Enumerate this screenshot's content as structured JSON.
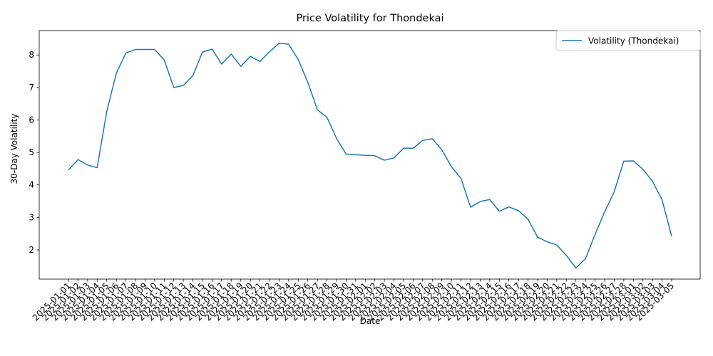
{
  "chart_data": {
    "type": "line",
    "title": "Price Volatility for Thondekai",
    "xlabel": "Date",
    "ylabel": "30-Day Volatility",
    "ylim": [
      1.1,
      8.75
    ],
    "yticks": [
      2,
      3,
      4,
      5,
      6,
      7,
      8
    ],
    "grid": false,
    "legend_position": "top-right",
    "colors": {
      "series": "#1f77b4"
    },
    "x": [
      "2025-01-01",
      "2025-01-02",
      "2025-01-03",
      "2025-01-04",
      "2025-01-05",
      "2025-01-06",
      "2025-01-07",
      "2025-01-08",
      "2025-01-09",
      "2025-01-10",
      "2025-01-11",
      "2025-01-12",
      "2025-01-13",
      "2025-01-14",
      "2025-01-15",
      "2025-01-16",
      "2025-01-17",
      "2025-01-18",
      "2025-01-19",
      "2025-01-20",
      "2025-01-21",
      "2025-01-22",
      "2025-01-23",
      "2025-01-24",
      "2025-01-25",
      "2025-01-26",
      "2025-01-27",
      "2025-01-28",
      "2025-01-29",
      "2025-01-30",
      "2025-01-31",
      "2025-02-01",
      "2025-02-02",
      "2025-02-03",
      "2025-02-04",
      "2025-02-05",
      "2025-02-06",
      "2025-02-07",
      "2025-02-08",
      "2025-02-09",
      "2025-02-10",
      "2025-02-11",
      "2025-02-12",
      "2025-02-13",
      "2025-02-14",
      "2025-02-15",
      "2025-02-16",
      "2025-02-17",
      "2025-02-18",
      "2025-02-19",
      "2025-02-20",
      "2025-02-21",
      "2025-02-22",
      "2025-02-23",
      "2025-02-24",
      "2025-02-25",
      "2025-02-26",
      "2025-02-27",
      "2025-02-28",
      "2025-03-01",
      "2025-03-02",
      "2025-03-03",
      "2025-03-04",
      "2025-03-05"
    ],
    "series": [
      {
        "name": "Volatility (Thondekai)",
        "values": [
          4.46,
          4.78,
          4.61,
          4.53,
          6.26,
          7.44,
          8.06,
          8.17,
          8.17,
          8.17,
          7.85,
          7.0,
          7.06,
          7.37,
          8.09,
          8.18,
          7.72,
          8.03,
          7.65,
          7.96,
          7.8,
          8.1,
          8.36,
          8.33,
          7.86,
          7.16,
          6.31,
          6.08,
          5.43,
          4.95,
          4.93,
          4.91,
          4.9,
          4.76,
          4.83,
          5.13,
          5.13,
          5.37,
          5.42,
          5.08,
          4.56,
          4.2,
          3.31,
          3.49,
          3.55,
          3.19,
          3.32,
          3.21,
          2.94,
          2.39,
          2.25,
          2.15,
          1.83,
          1.44,
          1.73,
          2.47,
          3.17,
          3.79,
          4.73,
          4.74,
          4.48,
          4.11,
          3.54,
          2.42
        ]
      }
    ]
  }
}
